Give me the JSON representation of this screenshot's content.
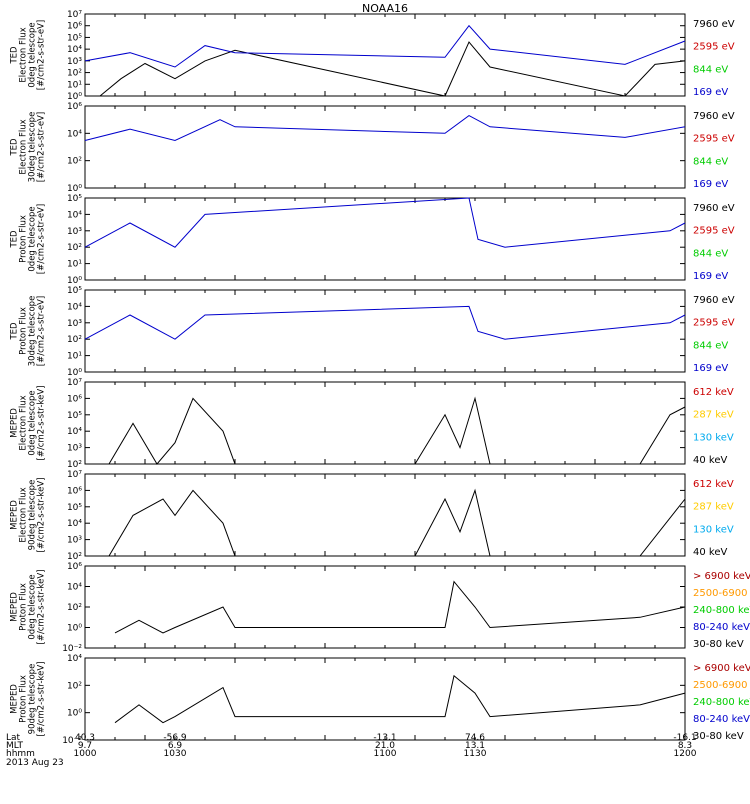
{
  "title": "NOAA16",
  "footer": {
    "row_labels": [
      "Lat",
      "MLT",
      "hhmm",
      "2013 Aug 23"
    ],
    "ticks": [
      {
        "lat": "40.3",
        "mlt": "9.7",
        "hhmm": "1000"
      },
      {
        "lat": "-56.9",
        "mlt": "6.9",
        "hhmm": "1030"
      },
      {
        "lat": "-13.1",
        "mlt": "21.0",
        "hhmm": "1100"
      },
      {
        "lat": "74.6",
        "mlt": "13.1",
        "hhmm": "1130"
      },
      {
        "lat": "-16.1",
        "mlt": "8.3",
        "hhmm": "1200"
      }
    ]
  },
  "chart_data": [
    {
      "type": "line",
      "ylabel": [
        "TED",
        "Electron Flux",
        "0deg telescope",
        "[#/cm2-s-str-eV]"
      ],
      "ylim": [
        1,
        10000000
      ],
      "yscale": "log",
      "ytick_labels": [
        "10⁰",
        "10¹",
        "10²",
        "10³",
        "10⁴",
        "10⁵",
        "10⁶",
        "10⁷"
      ],
      "xlim": [
        1000,
        1200
      ],
      "legend": [
        {
          "label": "7960 eV",
          "color": "#000000"
        },
        {
          "label": "2595 eV",
          "color": "#cc0000"
        },
        {
          "label": "844 eV",
          "color": "#00cc00"
        },
        {
          "label": "169 eV",
          "color": "#0000cc"
        }
      ],
      "series_envelope": [
        {
          "name": "7960 eV",
          "x": [
            1005,
            1012,
            1020,
            1030,
            1040,
            1050,
            1120,
            1128,
            1135,
            1180,
            1190,
            1200
          ],
          "y": [
            1,
            30,
            600,
            30,
            1000,
            8000,
            1,
            40000,
            300,
            1,
            500,
            1000
          ]
        },
        {
          "name": "169 eV",
          "x": [
            1000,
            1015,
            1030,
            1040,
            1050,
            1120,
            1128,
            1135,
            1180,
            1200
          ],
          "y": [
            1000,
            5000,
            300,
            20000,
            5000,
            2000,
            1000000,
            10000,
            500,
            50000
          ]
        }
      ]
    },
    {
      "type": "line",
      "ylabel": [
        "TED",
        "Electron Flux",
        "30deg telescope",
        "[#/cm2-s-str-eV]"
      ],
      "ylim": [
        1,
        1000000
      ],
      "yscale": "log",
      "ytick_labels": [
        "10⁰",
        "10²",
        "10⁴",
        "10⁶"
      ],
      "xlim": [
        1000,
        1200
      ],
      "legend": [
        {
          "label": "7960 eV",
          "color": "#000000"
        },
        {
          "label": "2595 eV",
          "color": "#cc0000"
        },
        {
          "label": "844 eV",
          "color": "#00cc00"
        },
        {
          "label": "169 eV",
          "color": "#0000cc"
        }
      ],
      "series_envelope": [
        {
          "name": "169 eV",
          "x": [
            1000,
            1015,
            1030,
            1045,
            1050,
            1120,
            1128,
            1135,
            1180,
            1200
          ],
          "y": [
            3000,
            20000,
            3000,
            100000,
            30000,
            10000,
            200000,
            30000,
            5000,
            30000
          ]
        }
      ]
    },
    {
      "type": "line",
      "ylabel": [
        "TED",
        "Proton Flux",
        "0deg telescope",
        "[#/cm2-s-str-eV]"
      ],
      "ylim": [
        1,
        100000
      ],
      "yscale": "log",
      "ytick_labels": [
        "10⁰",
        "10¹",
        "10²",
        "10³",
        "10⁴",
        "10⁵"
      ],
      "xlim": [
        1000,
        1200
      ],
      "legend": [
        {
          "label": "7960 eV",
          "color": "#000000"
        },
        {
          "label": "2595 eV",
          "color": "#cc0000"
        },
        {
          "label": "844 eV",
          "color": "#00cc00"
        },
        {
          "label": "169 eV",
          "color": "#0000cc"
        }
      ],
      "series_envelope": [
        {
          "name": "169 eV",
          "x": [
            1000,
            1015,
            1030,
            1040,
            1128,
            1131,
            1140,
            1195,
            1200
          ],
          "y": [
            100,
            3000,
            100,
            10000,
            100000,
            300,
            100,
            1000,
            3000
          ]
        }
      ]
    },
    {
      "type": "line",
      "ylabel": [
        "TED",
        "Proton Flux",
        "30deg telescope",
        "[#/cm2-s-str-eV]"
      ],
      "ylim": [
        1,
        100000
      ],
      "yscale": "log",
      "ytick_labels": [
        "10⁰",
        "10¹",
        "10²",
        "10³",
        "10⁴",
        "10⁵"
      ],
      "xlim": [
        1000,
        1200
      ],
      "legend": [
        {
          "label": "7960 eV",
          "color": "#000000"
        },
        {
          "label": "2595 eV",
          "color": "#cc0000"
        },
        {
          "label": "844 eV",
          "color": "#00cc00"
        },
        {
          "label": "169 eV",
          "color": "#0000cc"
        }
      ],
      "series_envelope": [
        {
          "name": "169 eV",
          "x": [
            1000,
            1015,
            1030,
            1040,
            1128,
            1131,
            1140,
            1195,
            1200
          ],
          "y": [
            100,
            3000,
            100,
            3000,
            10000,
            300,
            100,
            1000,
            3000
          ]
        }
      ]
    },
    {
      "type": "line",
      "ylabel": [
        "MEPED",
        "Electron Flux",
        "0deg telescope",
        "[#/cm2-s-str-keV]"
      ],
      "ylim": [
        100,
        10000000
      ],
      "yscale": "log",
      "ytick_labels": [
        "10²",
        "10³",
        "10⁴",
        "10⁵",
        "10⁶",
        "10⁷"
      ],
      "xlim": [
        1000,
        1200
      ],
      "legend": [
        {
          "label": "612 keV",
          "color": "#cc0000"
        },
        {
          "label": "287 keV",
          "color": "#ffcc00"
        },
        {
          "label": "130 keV",
          "color": "#00aaee"
        },
        {
          "label": "40 keV",
          "color": "#000000"
        }
      ],
      "series_envelope": [
        {
          "name": "40 keV",
          "x": [
            1008,
            1016,
            1024,
            1030,
            1036,
            1046,
            1050,
            1110,
            1120,
            1125,
            1130,
            1135,
            1185,
            1195,
            1200
          ],
          "y": [
            100,
            30000,
            100,
            2000,
            1000000,
            10000,
            100,
            100,
            100000,
            1000,
            1000000,
            100,
            100,
            100000,
            300000
          ]
        }
      ]
    },
    {
      "type": "line",
      "ylabel": [
        "MEPED",
        "Electron Flux",
        "90deg telescope",
        "[#/cm2-s-str-keV]"
      ],
      "ylim": [
        100,
        10000000
      ],
      "yscale": "log",
      "ytick_labels": [
        "10²",
        "10³",
        "10⁴",
        "10⁵",
        "10⁶",
        "10⁷"
      ],
      "xlim": [
        1000,
        1200
      ],
      "legend": [
        {
          "label": "612 keV",
          "color": "#cc0000"
        },
        {
          "label": "287 keV",
          "color": "#ffcc00"
        },
        {
          "label": "130 keV",
          "color": "#00aaee"
        },
        {
          "label": "40 keV",
          "color": "#000000"
        }
      ],
      "series_envelope": [
        {
          "name": "40 keV",
          "x": [
            1008,
            1016,
            1026,
            1030,
            1036,
            1046,
            1050,
            1110,
            1120,
            1125,
            1130,
            1135,
            1185,
            1200
          ],
          "y": [
            100,
            30000,
            300000,
            30000,
            1000000,
            10000,
            100,
            100,
            300000,
            3000,
            1000000,
            100,
            100,
            300000
          ]
        }
      ]
    },
    {
      "type": "line",
      "ylabel": [
        "MEPED",
        "Proton Flux",
        "0deg telescope",
        "[#/cm2-s-str-keV]"
      ],
      "ylim": [
        0.01,
        1000000
      ],
      "yscale": "log",
      "ytick_labels": [
        "10⁻²",
        "10⁰",
        "10²",
        "10⁴",
        "10⁶"
      ],
      "xlim": [
        1000,
        1200
      ],
      "legend": [
        {
          "label": "> 6900 keV",
          "color": "#aa0000"
        },
        {
          "label": "2500-6900",
          "color": "#ff9900"
        },
        {
          "label": "240-800 keV",
          "color": "#00cc00"
        },
        {
          "label": "80-240 keV",
          "color": "#0000cc"
        },
        {
          "label": "30-80 keV",
          "color": "#000000"
        }
      ],
      "series_envelope": [
        {
          "name": "30-80 keV",
          "x": [
            1010,
            1018,
            1026,
            1030,
            1046,
            1050,
            1120,
            1123,
            1130,
            1135,
            1185,
            1200
          ],
          "y": [
            0.3,
            5,
            0.3,
            1,
            100,
            1,
            1,
            30000,
            100,
            1,
            10,
            100
          ]
        }
      ]
    },
    {
      "type": "line",
      "ylabel": [
        "MEPED",
        "Proton Flux",
        "90deg telescope",
        "[#/cm2-s-str-keV]"
      ],
      "ylim": [
        0.01,
        100000
      ],
      "yscale": "log",
      "ytick_labels": [
        "10⁻²",
        "10⁰",
        "10²",
        "10⁴"
      ],
      "xlim": [
        1000,
        1200
      ],
      "legend": [
        {
          "label": "> 6900 keV",
          "color": "#aa0000"
        },
        {
          "label": "2500-6900",
          "color": "#ff9900"
        },
        {
          "label": "240-800 keV",
          "color": "#00cc00"
        },
        {
          "label": "80-240 keV",
          "color": "#0000cc"
        },
        {
          "label": "30-80 keV",
          "color": "#000000"
        }
      ],
      "series_envelope": [
        {
          "name": "30-80 keV",
          "x": [
            1010,
            1018,
            1026,
            1030,
            1046,
            1050,
            1120,
            1123,
            1130,
            1135,
            1185,
            1200
          ],
          "y": [
            0.3,
            10,
            0.3,
            1,
            300,
            1,
            1,
            3000,
            100,
            1,
            10,
            100
          ]
        }
      ]
    }
  ]
}
